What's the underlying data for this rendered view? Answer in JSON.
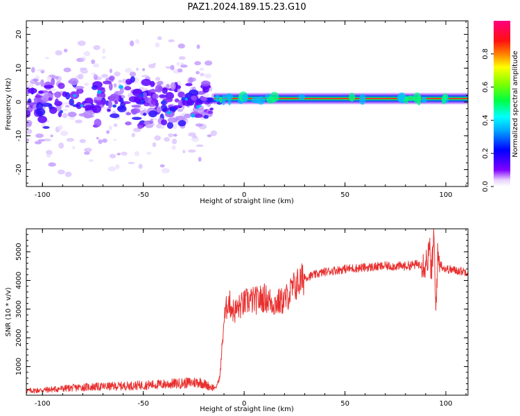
{
  "figure": {
    "title": "PAZ1.2024.189.15.23.G10"
  },
  "chart_data": [
    {
      "type": "heatmap",
      "xlabel": "Height of straight line (km)",
      "ylabel": "Frequency (Hz)",
      "xlim": [
        -108,
        111
      ],
      "ylim": [
        -25,
        24
      ],
      "xticks": [
        -100,
        -50,
        0,
        50,
        100
      ],
      "yticks": [
        -20,
        -10,
        0,
        10,
        20
      ],
      "colorbar": {
        "label": "Normalized spectral amplitude",
        "ticks": [
          0.0,
          0.2,
          0.4,
          0.6,
          0.8
        ],
        "range": [
          0,
          1
        ],
        "colormap": "gist_rainbow_r",
        "colors": [
          "#ffffff",
          "#8000ff",
          "#0000ff",
          "#00ffff",
          "#00ff00",
          "#ffff00",
          "#ff8000",
          "#ff0000",
          "#ff0080"
        ]
      },
      "description_values": {
        "noise_region_km": [
          -108,
          -15
        ],
        "noise_freq_spread_hz": [
          -23,
          23
        ],
        "signal_line_freq_hz": 1.0,
        "signal_line_region_km": [
          -15,
          111
        ]
      }
    },
    {
      "type": "line",
      "xlabel": "Height of straight line (km)",
      "ylabel": "SNR (10 * v/v)",
      "xlim": [
        -108,
        111
      ],
      "ylim": [
        0,
        5800
      ],
      "xticks": [
        -100,
        -50,
        0,
        50,
        100
      ],
      "yticks": [
        1000,
        2000,
        3000,
        4000,
        5000
      ],
      "color": "#e8302f",
      "series": [
        {
          "x": [
            -108,
            -100,
            -90,
            -80,
            -70,
            -60,
            -50,
            -40,
            -30,
            -22,
            -17,
            -14,
            -12,
            -10,
            -8,
            -5,
            -2,
            2,
            6,
            10,
            15,
            20,
            25,
            30,
            35,
            40,
            50,
            60,
            70,
            80,
            85,
            90,
            92,
            93,
            94,
            95,
            96,
            98,
            100,
            105,
            111
          ],
          "values": [
            150,
            180,
            230,
            280,
            300,
            320,
            350,
            380,
            420,
            460,
            300,
            250,
            650,
            2600,
            3300,
            2900,
            3100,
            3300,
            3300,
            3400,
            3200,
            3300,
            3800,
            4100,
            4200,
            4300,
            4400,
            4450,
            4500,
            4500,
            4550,
            4600,
            5000,
            4200,
            5600,
            3000,
            4800,
            4500,
            4400,
            4350,
            4300
          ]
        }
      ]
    }
  ]
}
